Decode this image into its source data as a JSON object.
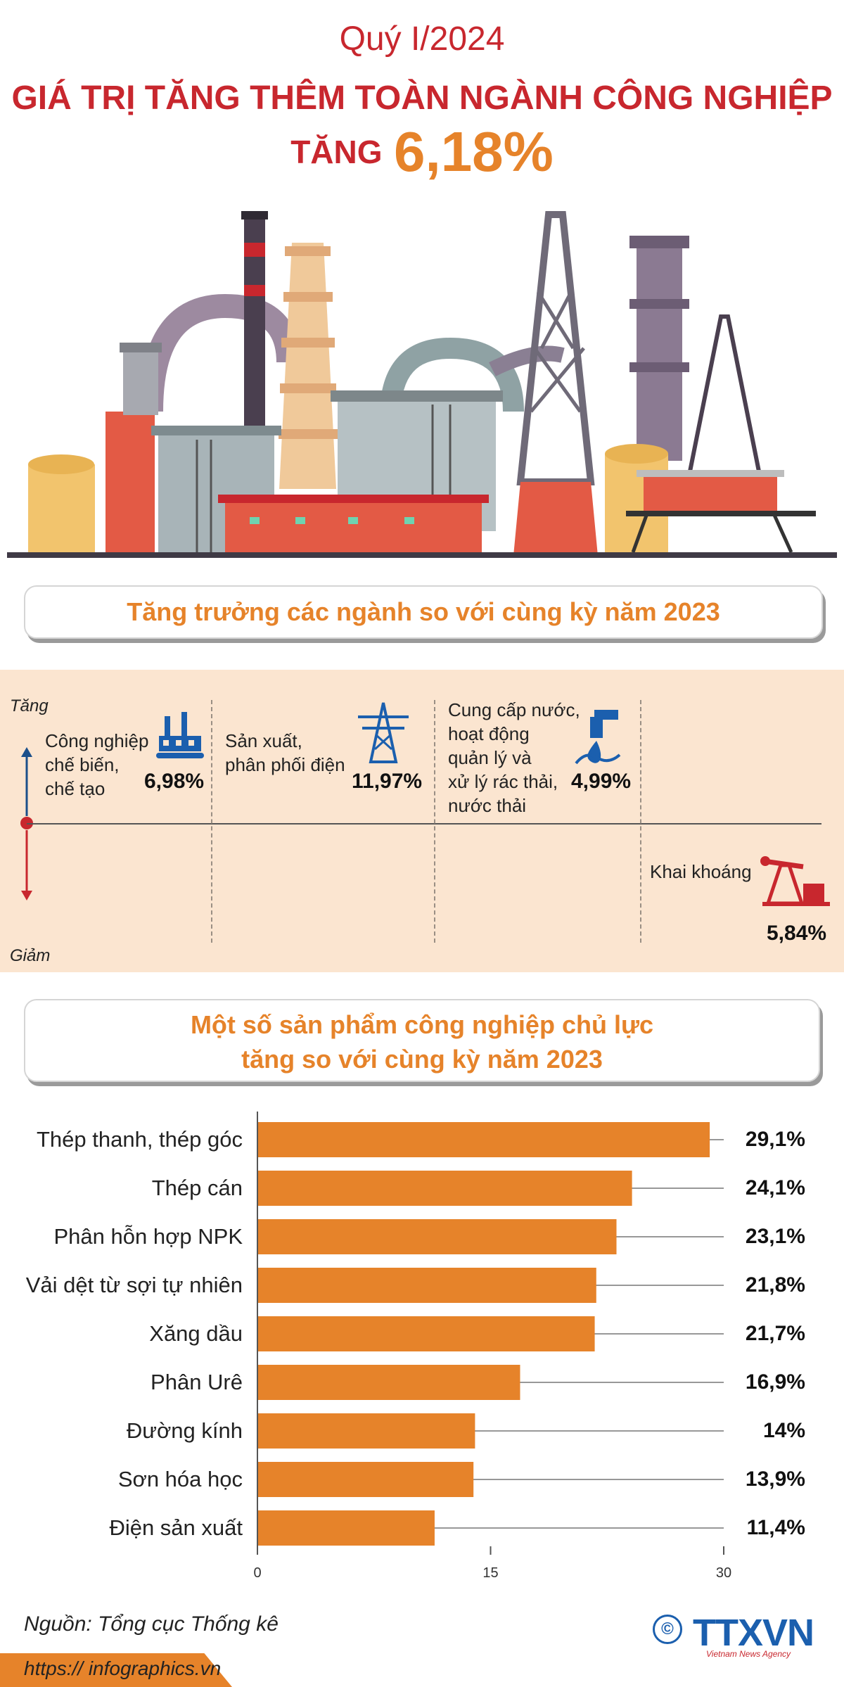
{
  "header": {
    "period": "Quý I/2024",
    "title": "GIÁ TRỊ TĂNG THÊM TOÀN NGÀNH CÔNG NGHIỆP",
    "subtitle_prefix": "TĂNG",
    "subtitle_value": "6,18%"
  },
  "section1": {
    "title": "Tăng trưởng các ngành so với cùng kỳ năm 2023",
    "axis_up": "Tăng",
    "axis_down": "Giảm",
    "sectors": [
      {
        "label_lines": [
          "Công nghiệp",
          "chế biến,",
          "chế tạo"
        ],
        "value": "6,98%",
        "icon": "factory-icon"
      },
      {
        "label_lines": [
          "Sản xuất,",
          "phân phối điện"
        ],
        "value": "11,97%",
        "icon": "power-tower-icon"
      },
      {
        "label_lines": [
          "Cung cấp nước,",
          "hoạt động",
          "quản lý và",
          "xử lý rác thải,",
          "nước thải"
        ],
        "value": "4,99%",
        "icon": "water-tap-icon"
      },
      {
        "label_lines": [
          "Khai khoáng"
        ],
        "value": "5,84%",
        "icon": "oil-pump-icon"
      }
    ]
  },
  "section2": {
    "title_line1": "Một số sản phẩm công nghiệp chủ lực",
    "title_line2": "tăng so với cùng kỳ năm 2023"
  },
  "chart_data": [
    {
      "type": "bar",
      "title": "Tăng trưởng các ngành so với cùng kỳ năm 2023",
      "categories": [
        "Công nghiệp chế biến, chế tạo",
        "Sản xuất, phân phối điện",
        "Cung cấp nước, hoạt động quản lý và xử lý rác thải, nước thải",
        "Khai khoáng"
      ],
      "values": [
        6.98,
        11.97,
        4.99,
        -5.84
      ]
    },
    {
      "type": "bar",
      "orientation": "horizontal",
      "title": "Một số sản phẩm công nghiệp chủ lực tăng so với cùng kỳ năm 2023",
      "categories": [
        "Thép thanh, thép góc",
        "Thép cán",
        "Phân hỗn hợp NPK",
        "Vải dệt từ sợi tự nhiên",
        "Xăng dầu",
        "Phân Urê",
        "Đường kính",
        "Sơn hóa học",
        "Điện sản xuất"
      ],
      "values": [
        29.1,
        24.1,
        23.1,
        21.8,
        21.7,
        16.9,
        14,
        13.9,
        11.4
      ],
      "value_labels": [
        "29,1%",
        "24,1%",
        "23,1%",
        "21,8%",
        "21,7%",
        "16,9%",
        "14%",
        "13,9%",
        "11,4%"
      ],
      "xlim": [
        0,
        30
      ],
      "xticks": [
        "0",
        "15",
        "30"
      ],
      "bar_color": "#e6832a"
    }
  ],
  "footer": {
    "source": "Nguồn: Tổng cục Thống kê",
    "url": "https:// infographics.vn",
    "logo": "TTXVN",
    "logo_sub": "Vietnam News Agency",
    "copyright": "©"
  }
}
